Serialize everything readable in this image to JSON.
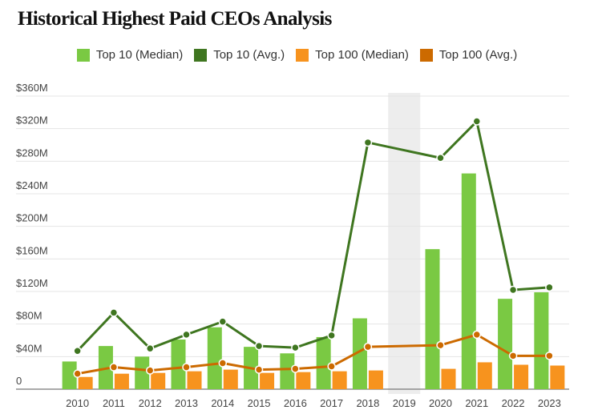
{
  "chart_data": {
    "type": "bar",
    "title": "Historical Highest Paid CEOs Analysis",
    "xlabel": "",
    "ylabel": "",
    "ylim": [
      0,
      360
    ],
    "y_ticks": [
      0,
      40,
      80,
      120,
      160,
      200,
      240,
      280,
      320,
      360
    ],
    "y_tick_labels": [
      "0",
      "$40M",
      "$80M",
      "$120M",
      "$160M",
      "$200M",
      "$240M",
      "$280M",
      "$320M",
      "$360M"
    ],
    "grid": true,
    "legend_position": "top-center",
    "highlighted_category": "2019",
    "categories": [
      "2010",
      "2011",
      "2012",
      "2013",
      "2014",
      "2015",
      "2016",
      "2017",
      "2018",
      "2019",
      "2020",
      "2021",
      "2022",
      "2023"
    ],
    "series": [
      {
        "name": "Top 10 (Median)",
        "kind": "bar",
        "color": "#7ac943",
        "values": [
          34,
          53,
          40,
          61,
          76,
          52,
          44,
          64,
          87,
          null,
          172,
          265,
          111,
          119
        ]
      },
      {
        "name": "Top 10 (Avg.)",
        "kind": "line",
        "color": "#3f7620",
        "values": [
          47,
          94,
          50,
          67,
          83,
          53,
          51,
          66,
          303,
          null,
          284,
          329,
          122,
          125
        ]
      },
      {
        "name": "Top 100 (Median)",
        "kind": "bar",
        "color": "#f7931e",
        "values": [
          15,
          19,
          20,
          22,
          24,
          20,
          21,
          22,
          23,
          null,
          25,
          33,
          30,
          29
        ]
      },
      {
        "name": "Top 100 (Avg.)",
        "kind": "line",
        "color": "#cc6a00",
        "values": [
          19,
          27,
          23,
          27,
          32,
          24,
          25,
          28,
          52,
          null,
          54,
          67,
          41,
          41
        ]
      }
    ]
  }
}
